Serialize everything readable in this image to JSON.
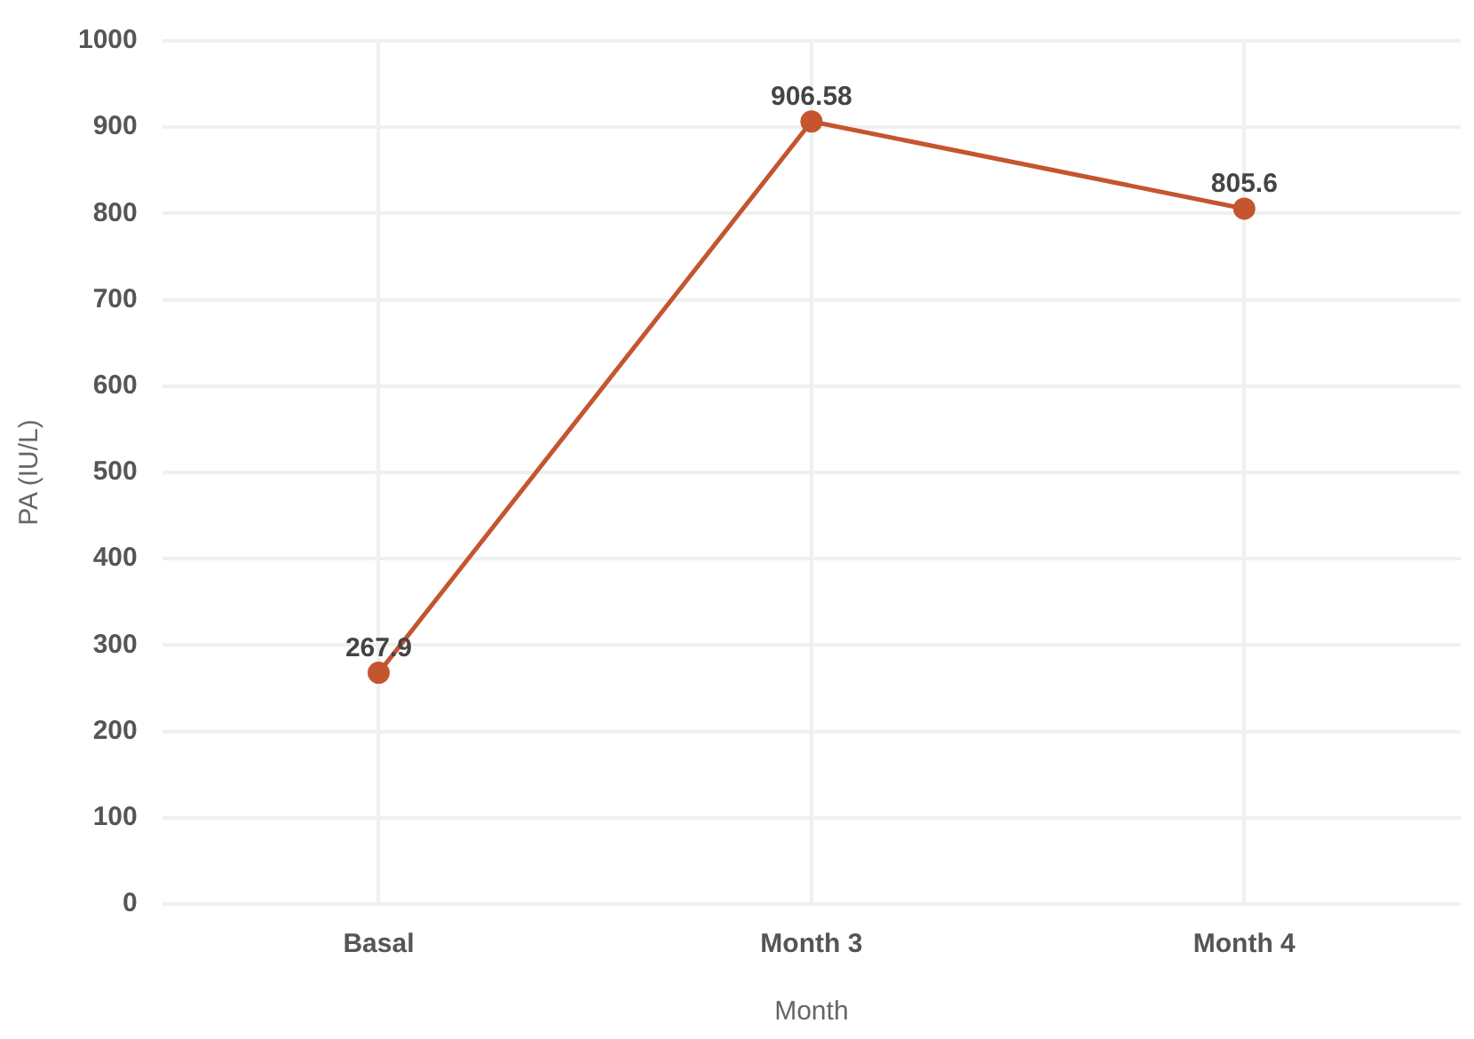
{
  "chart_data": {
    "type": "line",
    "xlabel": "Month",
    "ylabel": "PA (IU/L)",
    "categories": [
      "Basal",
      "Month 3",
      "Month 4"
    ],
    "series": [
      {
        "color": "#c4552f",
        "values": [
          267.9,
          906.58,
          805.6
        ]
      }
    ],
    "ylim": [
      0,
      1000
    ],
    "yticks": [
      0,
      100,
      200,
      300,
      400,
      500,
      600,
      700,
      800,
      900,
      1000
    ],
    "grid": true,
    "legend": false,
    "marker": "circle",
    "line_style": "solid",
    "data_labels": true
  }
}
